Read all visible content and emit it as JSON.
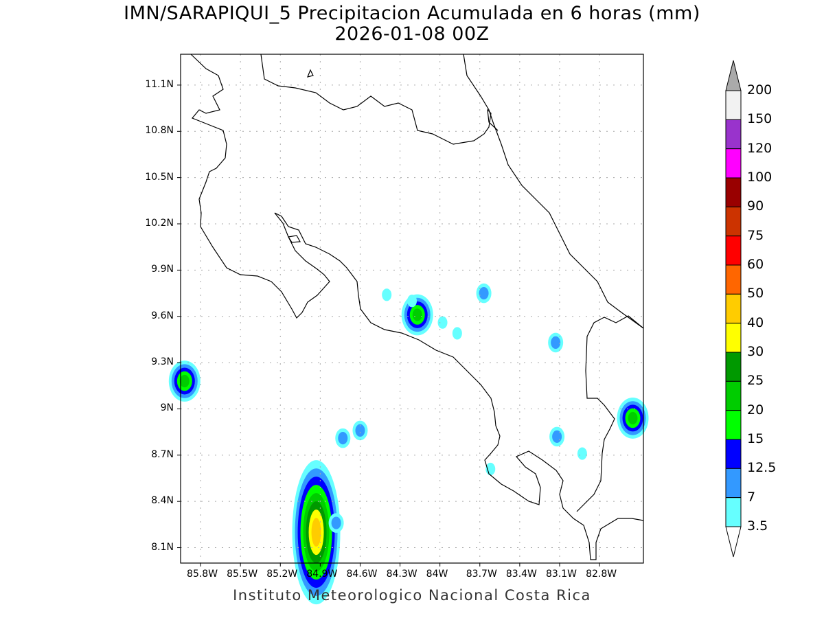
{
  "title": "IMN/SARAPIQUI_5 Precipitacion Acumulada en 6 horas (mm)",
  "subtitle": "2026-01-08 00Z",
  "credit": "Instituto Meteorologico Nacional Costa Rica",
  "map": {
    "lon_range": [
      -85.95,
      -82.47
    ],
    "lat_range": [
      8.0,
      11.3
    ],
    "lon_ticks": [
      {
        "v": -85.8,
        "label": "85.8W"
      },
      {
        "v": -85.5,
        "label": "85.5W"
      },
      {
        "v": -85.2,
        "label": "85.2W"
      },
      {
        "v": -84.9,
        "label": "84.9W"
      },
      {
        "v": -84.6,
        "label": "84.6W"
      },
      {
        "v": -84.3,
        "label": "84.3W"
      },
      {
        "v": -84.0,
        "label": "84W"
      },
      {
        "v": -83.7,
        "label": "83.7W"
      },
      {
        "v": -83.4,
        "label": "83.4W"
      },
      {
        "v": -83.1,
        "label": "83.1W"
      },
      {
        "v": -82.8,
        "label": "82.8W"
      }
    ],
    "lat_ticks": [
      {
        "v": 11.1,
        "label": "11.1N"
      },
      {
        "v": 10.8,
        "label": "10.8N"
      },
      {
        "v": 10.5,
        "label": "10.5N"
      },
      {
        "v": 10.2,
        "label": "10.2N"
      },
      {
        "v": 9.9,
        "label": "9.9N"
      },
      {
        "v": 9.6,
        "label": "9.6N"
      },
      {
        "v": 9.3,
        "label": "9.3N"
      },
      {
        "v": 9.0,
        "label": "9N"
      },
      {
        "v": 8.7,
        "label": "8.7N"
      },
      {
        "v": 8.4,
        "label": "8.4N"
      },
      {
        "v": 8.1,
        "label": "8.1N"
      }
    ]
  },
  "colorbar": {
    "labels": [
      "200",
      "150",
      "120",
      "100",
      "90",
      "75",
      "60",
      "50",
      "40",
      "30",
      "25",
      "20",
      "15",
      "12.5",
      "7",
      "3.5"
    ],
    "colors": [
      "#f2f2f2",
      "#9933cc",
      "#ff00ff",
      "#990000",
      "#cc3300",
      "#ff0000",
      "#ff6600",
      "#ffcc00",
      "#ffff00",
      "#009900",
      "#00cc00",
      "#00ff00",
      "#0000ff",
      "#3399ff",
      "#66ffff"
    ],
    "over_color": "#aaaaaa",
    "under_color": "#ffffff"
  },
  "precip_cells": [
    {
      "lon": -85.92,
      "lat": 9.18,
      "mm": 20
    },
    {
      "lon": -84.93,
      "lat": 8.2,
      "mm": 40
    },
    {
      "lon": -84.78,
      "lat": 8.26,
      "mm": 7
    },
    {
      "lon": -84.6,
      "lat": 8.86,
      "mm": 7
    },
    {
      "lon": -84.73,
      "lat": 8.81,
      "mm": 7
    },
    {
      "lon": -84.17,
      "lat": 9.61,
      "mm": 20
    },
    {
      "lon": -83.98,
      "lat": 9.56,
      "mm": 3.5
    },
    {
      "lon": -83.67,
      "lat": 9.75,
      "mm": 7
    },
    {
      "lon": -83.13,
      "lat": 9.43,
      "mm": 7
    },
    {
      "lon": -82.55,
      "lat": 8.94,
      "mm": 20
    },
    {
      "lon": -83.12,
      "lat": 8.82,
      "mm": 7
    },
    {
      "lon": -83.62,
      "lat": 8.61,
      "mm": 3.5
    },
    {
      "lon": -84.21,
      "lat": 9.7,
      "mm": 3.5
    },
    {
      "lon": -84.4,
      "lat": 9.74,
      "mm": 3.5
    },
    {
      "lon": -83.87,
      "lat": 9.49,
      "mm": 3.5
    },
    {
      "lon": -82.93,
      "lat": 8.71,
      "mm": 3.5
    }
  ]
}
